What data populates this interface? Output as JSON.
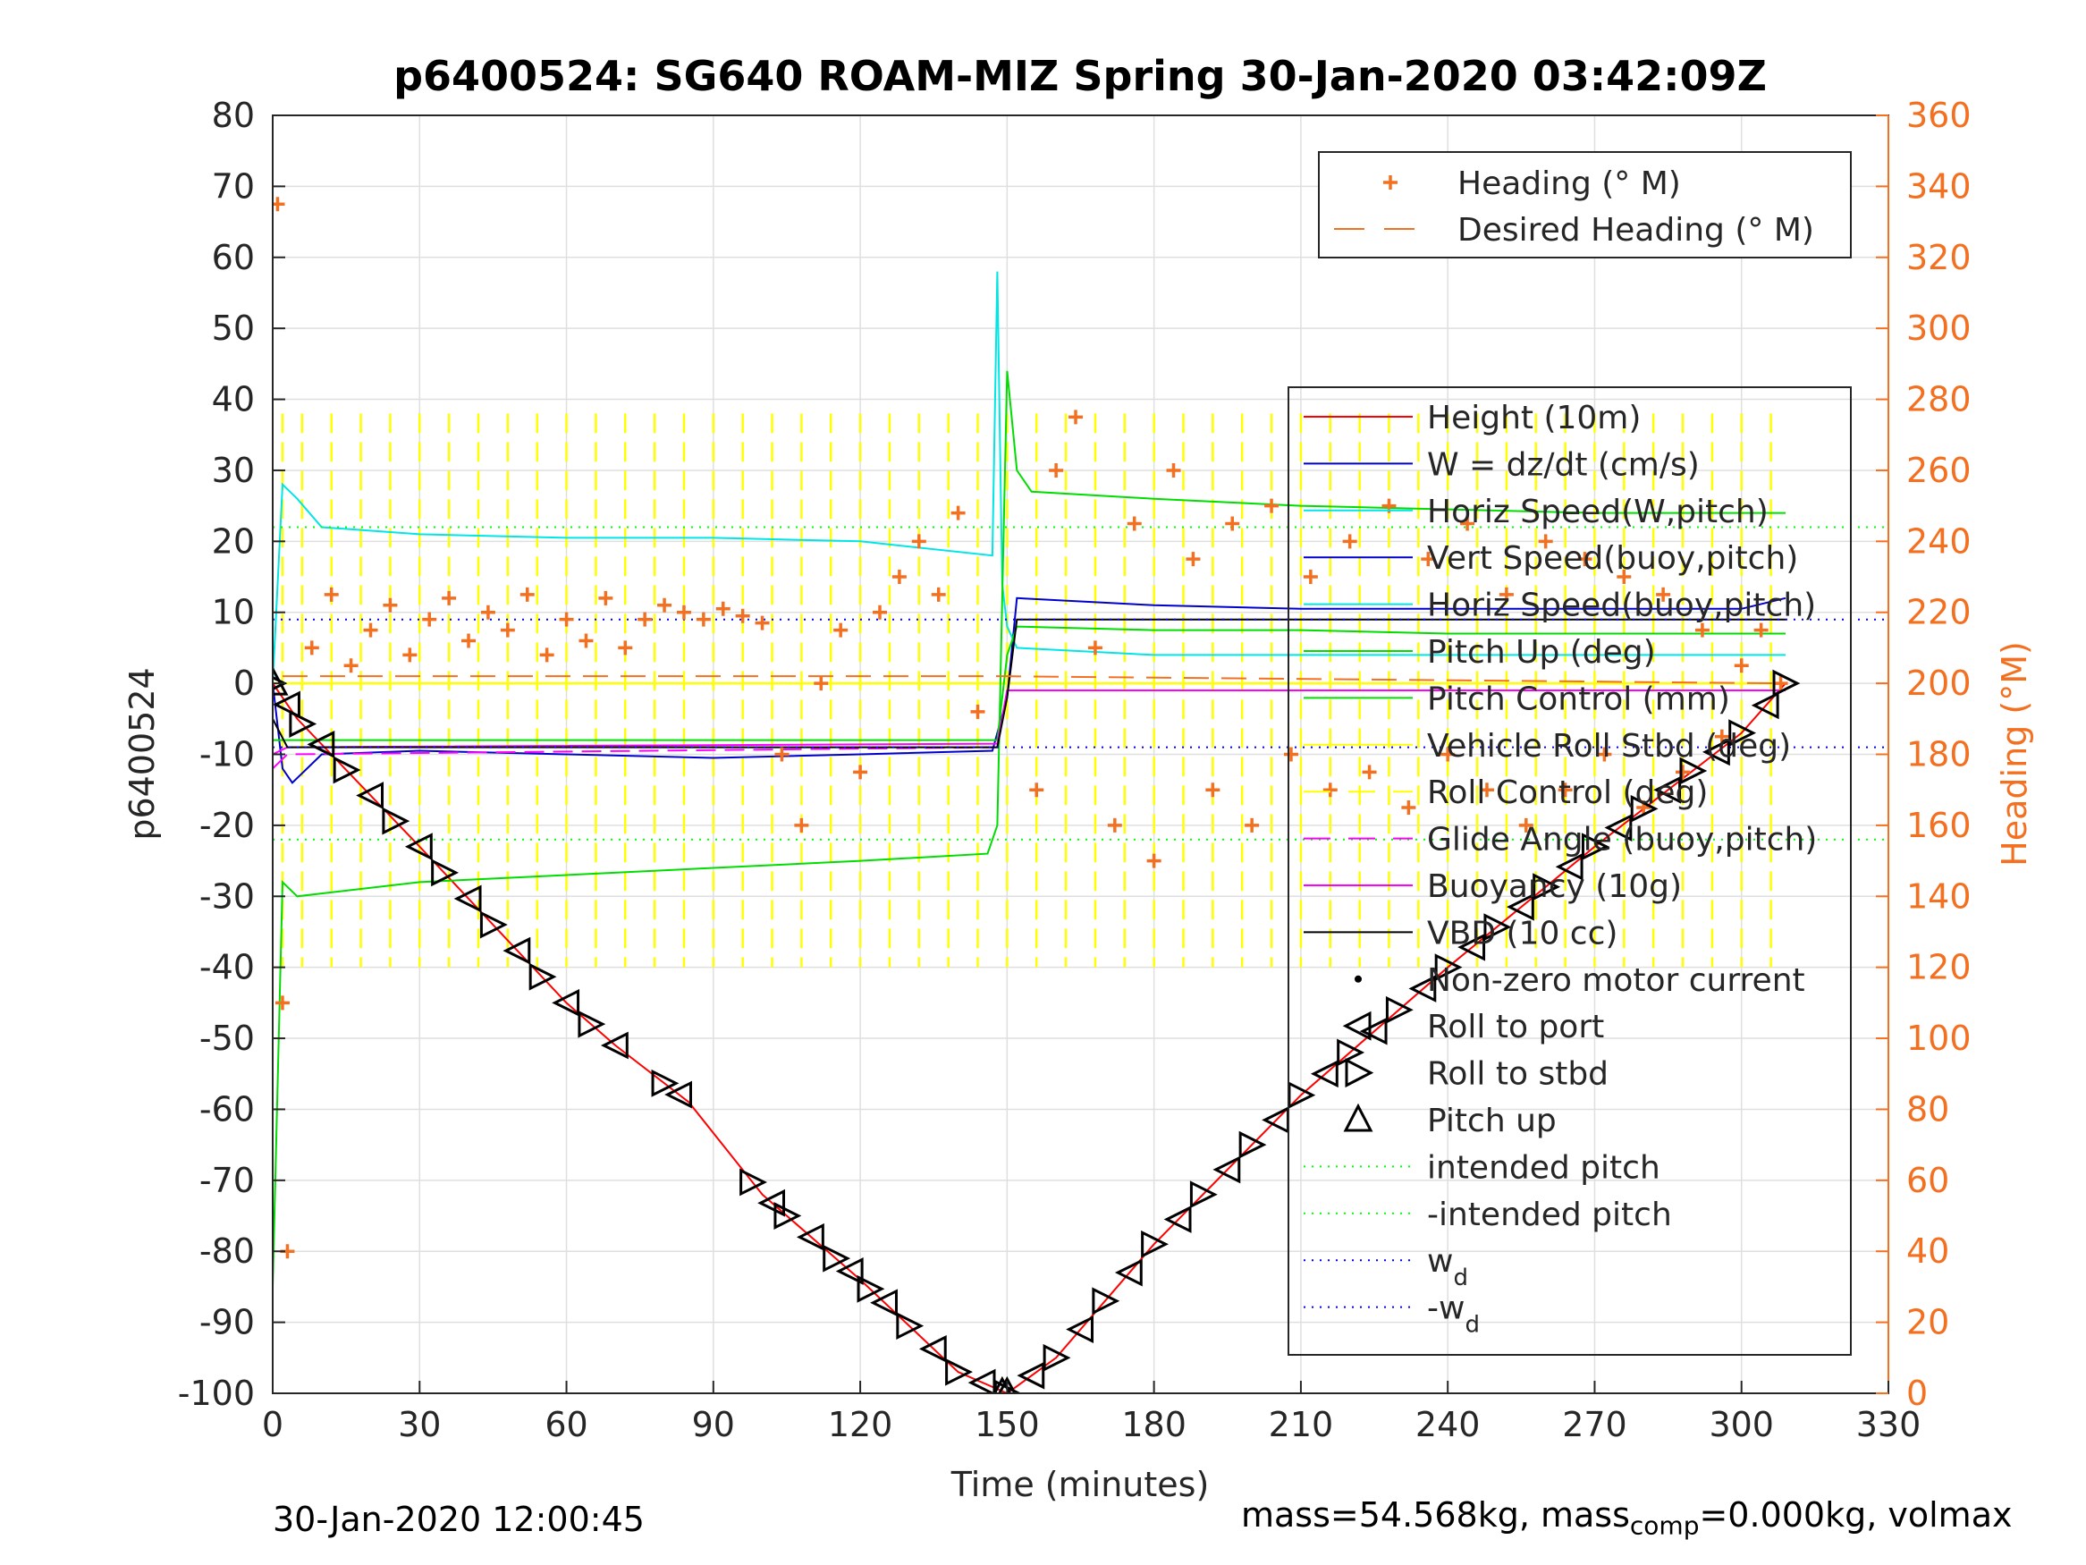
{
  "chart_data": {
    "type": "line",
    "title": "p6400524: SG640 ROAM-MIZ Spring 30-Jan-2020 03:42:09Z",
    "xlabel": "Time (minutes)",
    "ylabel_left": "p6400524",
    "ylabel_right": "Heading (°M)",
    "xlim": [
      0,
      330
    ],
    "ylim_left": [
      -100,
      80
    ],
    "ylim_right": [
      0,
      360
    ],
    "xticks": [
      0,
      30,
      60,
      90,
      120,
      150,
      180,
      210,
      240,
      270,
      300,
      330
    ],
    "yticks_left": [
      -100,
      -90,
      -80,
      -70,
      -60,
      -50,
      -40,
      -30,
      -20,
      -10,
      0,
      10,
      20,
      30,
      40,
      50,
      60,
      70,
      80
    ],
    "yticks_right": [
      0,
      20,
      40,
      60,
      80,
      100,
      120,
      140,
      160,
      180,
      200,
      220,
      240,
      260,
      280,
      300,
      320,
      340,
      360
    ],
    "grid": true,
    "heading_legend": [
      {
        "label": "Heading (° M)",
        "color": "#F37021",
        "style": "plus"
      },
      {
        "label": "Desired Heading (° M)",
        "color": "#F37021",
        "style": "dash"
      }
    ],
    "legend": [
      {
        "label": "Height (10m)",
        "color": "#FF0000",
        "style": "line"
      },
      {
        "label": "W = dz/dt (cm/s)",
        "color": "#0000CC",
        "style": "line"
      },
      {
        "label": "Horiz Speed(W,pitch)",
        "color": "#00E5E5",
        "style": "line"
      },
      {
        "label": "Vert Speed(buoy,pitch)",
        "color": "#0000CC",
        "style": "line"
      },
      {
        "label": "Horiz Speed(buoy,pitch)",
        "color": "#00E5E5",
        "style": "line"
      },
      {
        "label": "Pitch Up (deg)",
        "color": "#00DD00",
        "style": "line"
      },
      {
        "label": "Pitch Control (mm)",
        "color": "#00DD00",
        "style": "line"
      },
      {
        "label": "Vehicle Roll Stbd (deg)",
        "color": "#FFFF00",
        "style": "line"
      },
      {
        "label": "Roll Control (deg)",
        "color": "#FFFF00",
        "style": "dash"
      },
      {
        "label": "Glide Angle (buoy,pitch)",
        "color": "#FF00FF",
        "style": "dash"
      },
      {
        "label": "Buoyancy (10g)",
        "color": "#FF00FF",
        "style": "line"
      },
      {
        "label": "VBD (10 cc)",
        "color": "#000000",
        "style": "line"
      },
      {
        "label": "Non-zero motor current",
        "color": "#000000",
        "style": "dot"
      },
      {
        "label": "Roll to port",
        "color": "#000000",
        "style": "tri-left"
      },
      {
        "label": "Roll to stbd",
        "color": "#000000",
        "style": "tri-right"
      },
      {
        "label": "Pitch up",
        "color": "#000000",
        "style": "tri-up"
      },
      {
        "label": "intended pitch",
        "color": "#00FF00",
        "style": "dotted"
      },
      {
        "label": "-intended pitch",
        "color": "#00FF00",
        "style": "dotted"
      },
      {
        "label": "w",
        "sub": "d",
        "color": "#0000FF",
        "style": "dotted"
      },
      {
        "label": "-w",
        "sub": "d",
        "color": "#0000FF",
        "style": "dotted"
      }
    ],
    "series": [
      {
        "name": "Height (10m)",
        "color": "#FF0000",
        "x": [
          0,
          5,
          30,
          60,
          70,
          85,
          100,
          120,
          140,
          150,
          160,
          180,
          210,
          240,
          270,
          300,
          309
        ],
        "y": [
          0,
          -5,
          -23,
          -45,
          -51,
          -59,
          -72,
          -84,
          -97,
          -100,
          -95,
          -79,
          -58,
          -40,
          -23,
          -7,
          0
        ]
      },
      {
        "name": "W = dz/dt (cm/s)",
        "color": "#0000CC",
        "x": [
          0,
          2,
          4,
          10,
          30,
          60,
          90,
          120,
          147,
          150,
          152,
          180,
          210,
          240,
          270,
          300,
          309
        ],
        "y": [
          0,
          -12,
          -14,
          -10,
          -9.5,
          -10,
          -10.5,
          -10,
          -9.5,
          -2,
          12,
          11,
          10.5,
          10.5,
          10.5,
          10.5,
          12
        ]
      },
      {
        "name": "Horiz Speed(W,pitch)",
        "color": "#00E5E5",
        "x": [
          0,
          2,
          5,
          10,
          30,
          60,
          90,
          120,
          147,
          148,
          149,
          150,
          152,
          180,
          210,
          240,
          270,
          300,
          309
        ],
        "y": [
          0,
          28,
          26,
          22,
          21,
          20.5,
          20.5,
          20,
          18,
          58,
          14,
          8,
          5,
          4,
          4,
          4,
          4,
          4,
          4
        ]
      },
      {
        "name": "Pitch Up (deg)",
        "color": "#00DD00",
        "x": [
          0,
          2,
          5,
          30,
          60,
          90,
          120,
          146,
          148,
          150,
          152,
          155,
          180,
          210,
          240,
          270,
          300,
          309
        ],
        "y": [
          -85,
          -28,
          -30,
          -28,
          -27,
          -26,
          -25,
          -24,
          -20,
          44,
          30,
          27,
          26,
          25,
          24.5,
          24,
          24,
          24
        ]
      },
      {
        "name": "Pitch Control (mm)",
        "color": "#00DD00",
        "x": [
          0,
          5,
          30,
          60,
          90,
          120,
          148,
          150,
          152,
          180,
          210,
          240,
          270,
          300,
          309
        ],
        "y": [
          -8,
          -8,
          -8,
          -8,
          -8,
          -8,
          -8,
          4,
          8,
          7.5,
          7.5,
          7,
          7,
          7,
          7
        ]
      },
      {
        "name": "Glide Angle (buoy,pitch)",
        "color": "#FF00FF",
        "x": [
          0,
          3,
          148,
          150,
          309
        ],
        "y": [
          -12,
          -10,
          -9,
          -1,
          -1
        ]
      },
      {
        "name": "Buoyancy (10g)",
        "color": "#FF00FF",
        "x": [
          0,
          3,
          148,
          150,
          309
        ],
        "y": [
          -10,
          -9,
          -8.5,
          -1,
          -1
        ]
      },
      {
        "name": "VBD (10 cc)",
        "color": "#000000",
        "x": [
          0,
          3,
          148,
          150,
          152,
          309
        ],
        "y": [
          -5,
          -9,
          -9,
          -2,
          9,
          9
        ]
      },
      {
        "name": "intended pitch",
        "color": "#00FF00",
        "x": [
          0,
          330
        ],
        "y": [
          22,
          22
        ]
      },
      {
        "name": "-intended pitch",
        "color": "#00FF00",
        "x": [
          0,
          330
        ],
        "y": [
          -22,
          -22
        ]
      },
      {
        "name": "w_d",
        "color": "#0000FF",
        "x": [
          0,
          330
        ],
        "y": [
          9,
          9
        ]
      },
      {
        "name": "-w_d",
        "color": "#0000FF",
        "x": [
          0,
          330
        ],
        "y": [
          -9,
          -9
        ]
      }
    ],
    "depth_markers": {
      "x": [
        0,
        3,
        6,
        10,
        15,
        20,
        25,
        30,
        35,
        40,
        45,
        50,
        55,
        60,
        65,
        70,
        80,
        83,
        98,
        102,
        105,
        110,
        115,
        118,
        122,
        125,
        130,
        135,
        140,
        145,
        150,
        155,
        160,
        165,
        170,
        175,
        180,
        185,
        190,
        195,
        200,
        205,
        210,
        215,
        220,
        225,
        230,
        235,
        240,
        245,
        250,
        255,
        260,
        265,
        270,
        275,
        280,
        285,
        290,
        295,
        300,
        305,
        309
      ]
    },
    "heading_points": {
      "x": [
        1,
        2,
        3,
        8,
        12,
        16,
        20,
        24,
        28,
        32,
        36,
        40,
        44,
        48,
        52,
        56,
        60,
        64,
        68,
        72,
        76,
        80,
        84,
        88,
        92,
        96,
        100,
        104,
        108,
        112,
        116,
        120,
        124,
        128,
        132,
        136,
        140,
        144,
        156,
        160,
        164,
        168,
        172,
        176,
        180,
        184,
        188,
        192,
        196,
        200,
        204,
        208,
        212,
        216,
        220,
        224,
        228,
        232,
        236,
        240,
        244,
        248,
        252,
        256,
        260,
        264,
        268,
        272,
        276,
        280,
        284,
        288,
        292,
        296,
        300,
        304,
        308
      ],
      "y": [
        335,
        110,
        40,
        210,
        225,
        205,
        215,
        222,
        208,
        218,
        224,
        212,
        220,
        215,
        225,
        208,
        218,
        212,
        224,
        210,
        218,
        222,
        220,
        218,
        221,
        219,
        217,
        180,
        160,
        200,
        215,
        175,
        220,
        230,
        240,
        225,
        248,
        192,
        170,
        260,
        275,
        210,
        160,
        245,
        150,
        260,
        235,
        170,
        245,
        160,
        250,
        180,
        230,
        170,
        240,
        175,
        250,
        165,
        235,
        180,
        245,
        170,
        225,
        160,
        240,
        170,
        235,
        180,
        230,
        165,
        225,
        175,
        215,
        185,
        205,
        215,
        200
      ]
    },
    "desired_heading": {
      "x": [
        2,
        150,
        309
      ],
      "y": [
        202,
        202,
        200
      ]
    },
    "roll_spikes": {
      "x": [
        2,
        6,
        12,
        18,
        24,
        30,
        36,
        42,
        48,
        54,
        60,
        66,
        72,
        78,
        84,
        90,
        96,
        102,
        108,
        114,
        120,
        126,
        132,
        138,
        144,
        150,
        156,
        162,
        168,
        174,
        180,
        186,
        192,
        198,
        204,
        210,
        216,
        222,
        228,
        234,
        240,
        246,
        252,
        258,
        264,
        270,
        276,
        282,
        288,
        294,
        300,
        306
      ],
      "high": [
        38,
        38,
        38,
        38,
        38,
        38,
        38,
        38,
        38,
        38,
        38,
        38,
        38,
        38,
        38,
        38,
        38,
        38,
        38,
        38,
        38,
        38,
        38,
        38,
        38,
        38,
        38,
        38,
        38,
        38,
        38,
        38,
        38,
        38,
        38,
        38,
        38,
        38,
        38,
        38,
        38,
        38,
        38,
        38,
        38,
        38,
        38,
        38,
        38,
        38,
        38,
        38
      ],
      "low": [
        -40,
        -40,
        -40,
        -40,
        -40,
        -40,
        -40,
        -40,
        -40,
        -40,
        -40,
        -40,
        -40,
        -40,
        -40,
        -40,
        -40,
        -40,
        -40,
        -40,
        -40,
        -40,
        -40,
        -40,
        -40,
        -40,
        -40,
        -40,
        -40,
        -40,
        -40,
        -40,
        -40,
        -40,
        -40,
        -40,
        -40,
        -40,
        -40,
        -40,
        -40,
        -40,
        -40,
        -40,
        -40,
        -40,
        -40,
        -40,
        -40,
        -40,
        -40,
        -40
      ],
      "baseline": 0
    }
  },
  "footer": {
    "timestamp": "30-Jan-2020 12:00:45",
    "mass_text_a": "mass=54.568kg, mass",
    "mass_sub": "comp",
    "mass_text_b": "=0.000kg, volmax"
  }
}
